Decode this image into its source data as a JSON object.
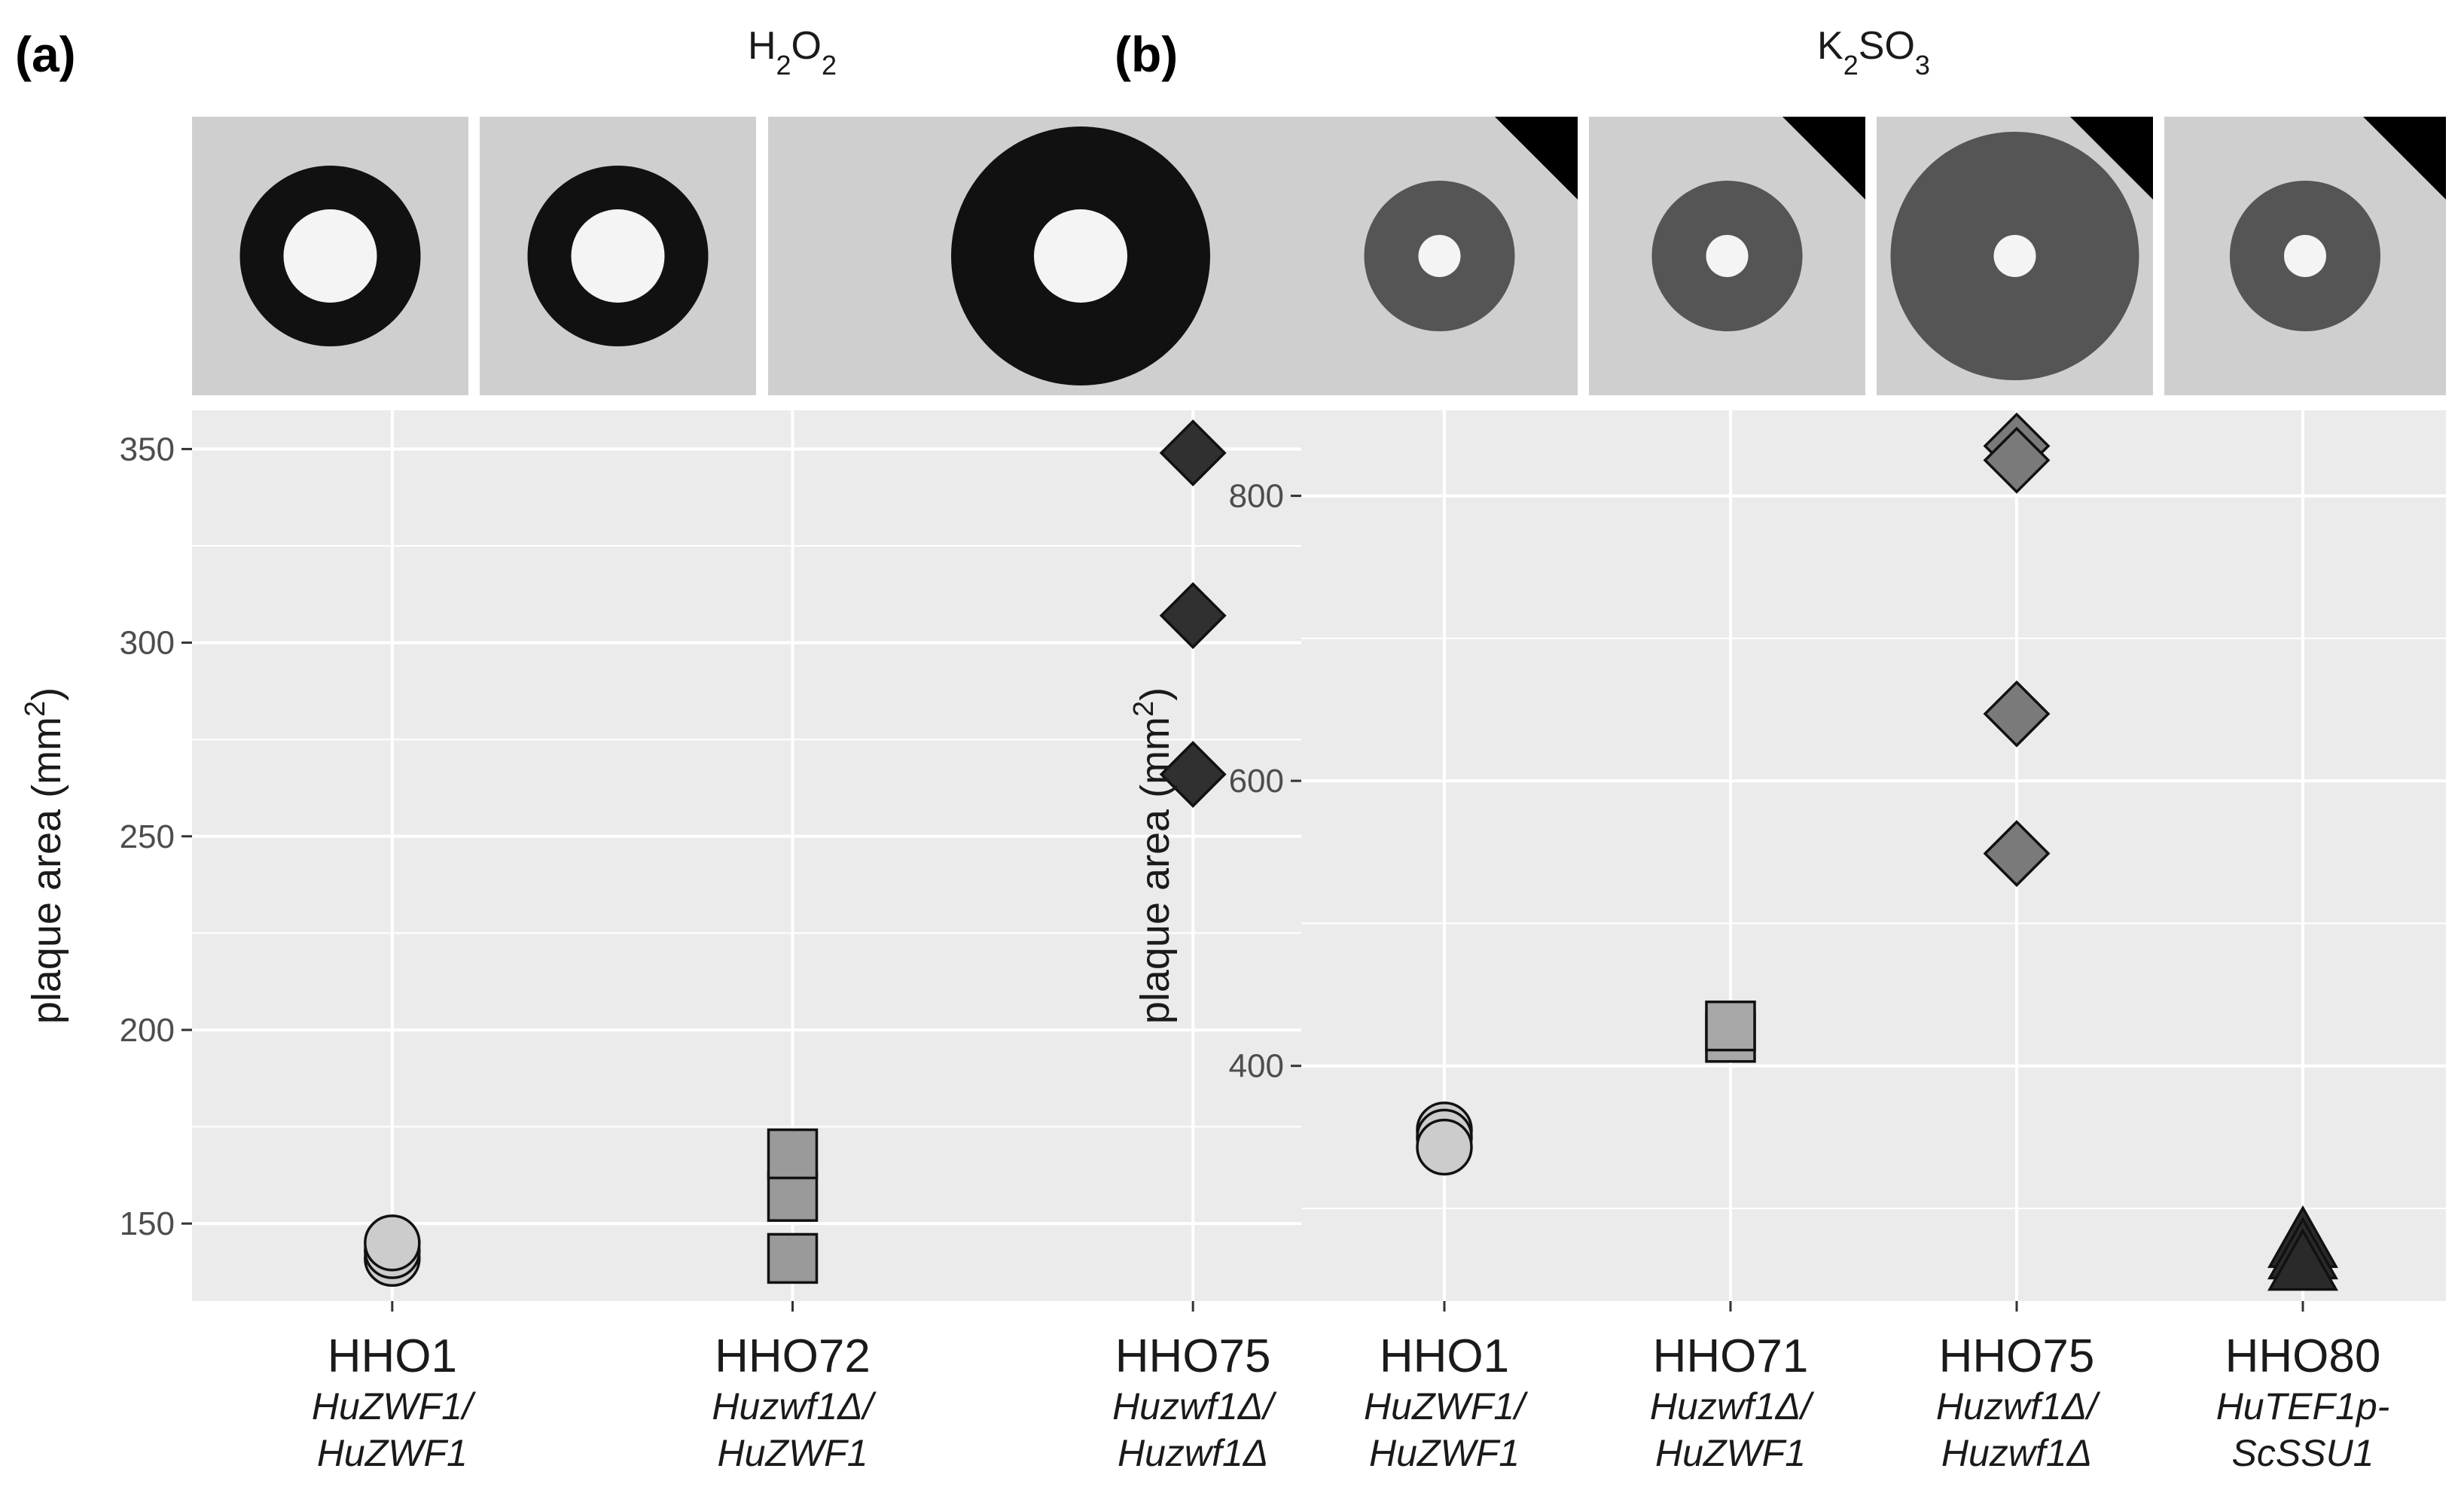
{
  "panels": [
    {
      "id": "a",
      "label": "(a)",
      "title_base": [
        "H",
        "O"
      ],
      "title_sub": [
        "2",
        "2"
      ],
      "ylabel_text": "plaque area (mm",
      "ylabel_sup": "2",
      "ylabel_close": ")",
      "image_count": 3,
      "image_tone": "#111111",
      "chart_data": {
        "type": "scatter",
        "ylim": [
          130,
          360
        ],
        "yticks": [
          150,
          200,
          250,
          300,
          350
        ],
        "ytick_labels": [
          "150",
          "200",
          "250",
          "300",
          "350"
        ],
        "minor_grid": [
          175,
          225,
          275,
          325
        ],
        "grid": true,
        "categories": [
          {
            "name": "HHO1",
            "genotype": [
              "HuZWF1/",
              "HuZWF1"
            ]
          },
          {
            "name": "HHO72",
            "genotype": [
              "Huzwf1Δ/",
              "HuZWF1"
            ]
          },
          {
            "name": "HHO75",
            "genotype": [
              "Huzwf1Δ/",
              "Huzwf1Δ"
            ]
          }
        ],
        "series": [
          {
            "category": "HHO1",
            "shape": "circle",
            "color": "#cccccc",
            "values": [
              141,
              143,
              145
            ]
          },
          {
            "category": "HHO72",
            "shape": "square",
            "color": "#9a9a9a",
            "values": [
              141,
              157,
              168
            ]
          },
          {
            "category": "HHO75",
            "shape": "diamond",
            "color": "#303030",
            "values": [
              266,
              307,
              349
            ]
          }
        ]
      }
    },
    {
      "id": "b",
      "label": "(b)",
      "title_base": [
        "K",
        "SO"
      ],
      "title_sub": [
        "2",
        "3"
      ],
      "ylabel_text": "plaque area (mm",
      "ylabel_sup": "2",
      "ylabel_close": ")",
      "image_count": 4,
      "image_tone": "#555555",
      "chart_data": {
        "type": "scatter",
        "ylim": [
          235,
          860
        ],
        "yticks": [
          400,
          600,
          800
        ],
        "ytick_labels": [
          "400",
          "600",
          "800"
        ],
        "minor_grid": [
          300,
          500,
          700
        ],
        "grid": true,
        "categories": [
          {
            "name": "HHO1",
            "genotype": [
              "HuZWF1/",
              "HuZWF1"
            ]
          },
          {
            "name": "HHO71",
            "genotype": [
              "Huzwf1Δ/",
              "HuZWF1"
            ]
          },
          {
            "name": "HHO75",
            "genotype": [
              "Huzwf1Δ/",
              "Huzwf1Δ"
            ]
          },
          {
            "name": "HHO80",
            "genotype": [
              "HuTEF1p-",
              "ScSSU1"
            ]
          }
        ],
        "series": [
          {
            "category": "HHO1",
            "shape": "circle",
            "color": "#cccccc",
            "values": [
              355,
              350,
              343
            ]
          },
          {
            "category": "HHO71",
            "shape": "square",
            "color": "#a8a8a8",
            "values": [
              420,
              428
            ]
          },
          {
            "category": "HHO75",
            "shape": "diamond",
            "color": "#7a7a7a",
            "values": [
              835,
              825,
              647,
              549
            ]
          },
          {
            "category": "HHO80",
            "shape": "triangle",
            "color": "#2a2a2a",
            "values": [
              276,
              268,
              260
            ]
          }
        ]
      }
    }
  ]
}
